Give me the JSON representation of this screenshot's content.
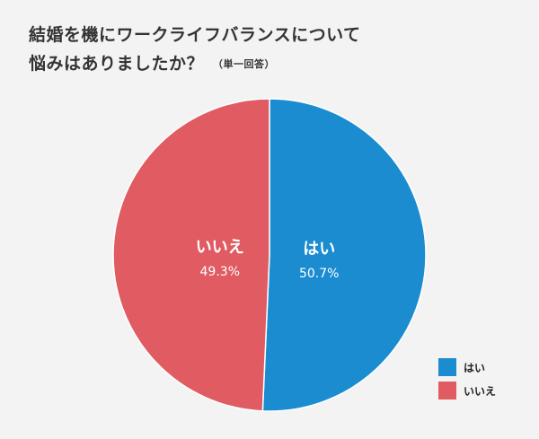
{
  "chart_data": {
    "type": "pie",
    "title_line1": "結婚を機にワークライフバランスについて",
    "title_line2": "悩みはありましたか？",
    "title_note": "（単一回答）",
    "slices": [
      {
        "label": "はい",
        "value": 50.7,
        "value_label": "50.7%",
        "color": "#1a8ccf"
      },
      {
        "label": "いいえ",
        "value": 49.3,
        "value_label": "49.3%",
        "color": "#e05b62"
      }
    ],
    "legend_position": "bottom-right"
  }
}
